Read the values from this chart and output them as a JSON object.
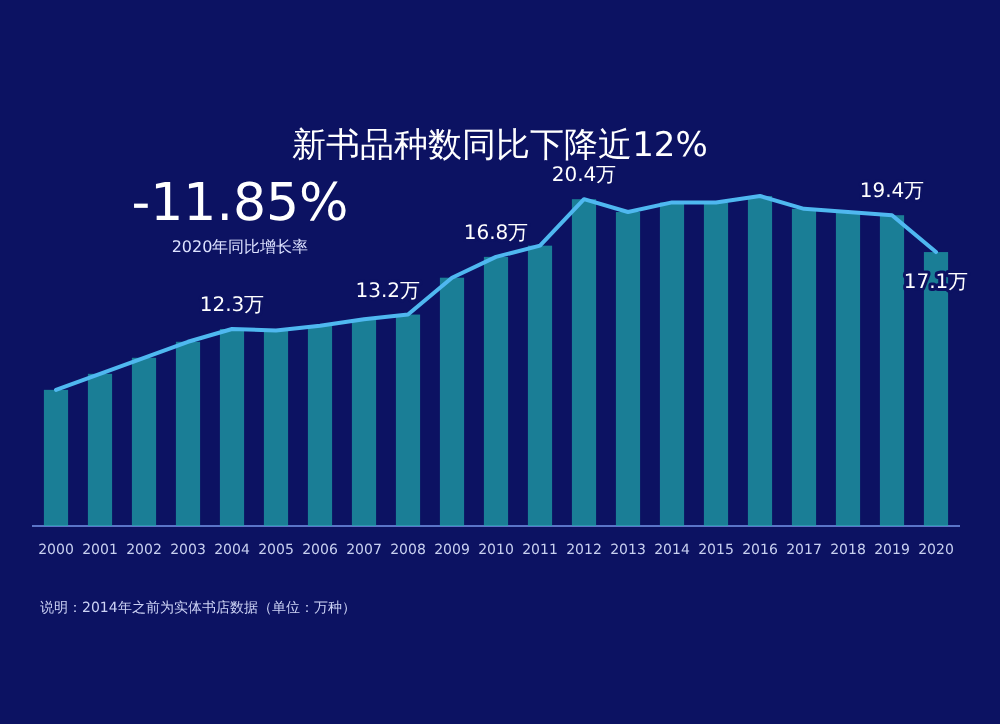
{
  "chart_data": {
    "type": "bar",
    "title": "新书品种数同比下降近12%",
    "annotations": [
      "-11.85%",
      "2020年同比增长率",
      "说明：2014年之前为实体书店数据（单位：万种）"
    ],
    "categories": [
      "2000",
      "2001",
      "2002",
      "2003",
      "2004",
      "2005",
      "2006",
      "2007",
      "2008",
      "2009",
      "2010",
      "2011",
      "2012",
      "2013",
      "2014",
      "2015",
      "2016",
      "2017",
      "2018",
      "2019",
      "2020"
    ],
    "series": [
      {
        "color": "#1fa3a8",
        "values": [
          8.5,
          9.5,
          10.5,
          11.5,
          12.3,
          12.2,
          12.5,
          12.9,
          13.2,
          15.5,
          16.8,
          17.5,
          20.4,
          19.6,
          20.2,
          20.2,
          20.6,
          19.8,
          19.6,
          19.4,
          17.1
        ]
      },
      {
        "type": "line",
        "color": "#4fb8f0",
        "values": [
          8.5,
          9.5,
          10.5,
          11.5,
          12.3,
          12.2,
          12.5,
          12.9,
          13.2,
          15.5,
          16.8,
          17.5,
          20.4,
          19.6,
          20.2,
          20.2,
          20.6,
          19.8,
          19.6,
          19.4,
          17.1
        ],
        "value_labels": [
          null,
          null,
          null,
          null,
          "12.3万",
          null,
          null,
          null,
          "13.2万",
          null,
          "16.8万",
          null,
          "20.4万",
          null,
          null,
          null,
          null,
          null,
          null,
          "19.4万",
          "17.1万"
        ]
      }
    ]
  }
}
